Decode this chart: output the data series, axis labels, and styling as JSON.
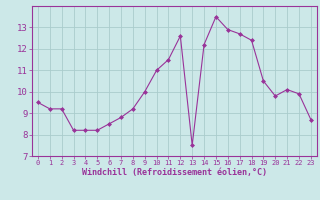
{
  "x": [
    0,
    1,
    2,
    3,
    4,
    5,
    6,
    7,
    8,
    9,
    10,
    11,
    12,
    13,
    14,
    15,
    16,
    17,
    18,
    19,
    20,
    21,
    22,
    23
  ],
  "y": [
    9.5,
    9.2,
    9.2,
    8.2,
    8.2,
    8.2,
    8.5,
    8.8,
    9.2,
    10.0,
    11.0,
    11.5,
    12.6,
    7.5,
    12.2,
    13.5,
    12.9,
    12.7,
    12.4,
    10.5,
    9.8,
    10.1,
    9.9,
    8.7
  ],
  "line_color": "#993399",
  "marker": "D",
  "marker_size": 2,
  "bg_color": "#cce8e8",
  "grid_color": "#aacccc",
  "xlabel": "Windchill (Refroidissement éolien,°C)",
  "xlabel_color": "#993399",
  "tick_color": "#993399",
  "ylim": [
    7,
    14
  ],
  "yticks": [
    7,
    8,
    9,
    10,
    11,
    12,
    13
  ],
  "xlim": [
    -0.5,
    23.5
  ],
  "xticks": [
    0,
    1,
    2,
    3,
    4,
    5,
    6,
    7,
    8,
    9,
    10,
    11,
    12,
    13,
    14,
    15,
    16,
    17,
    18,
    19,
    20,
    21,
    22,
    23
  ]
}
